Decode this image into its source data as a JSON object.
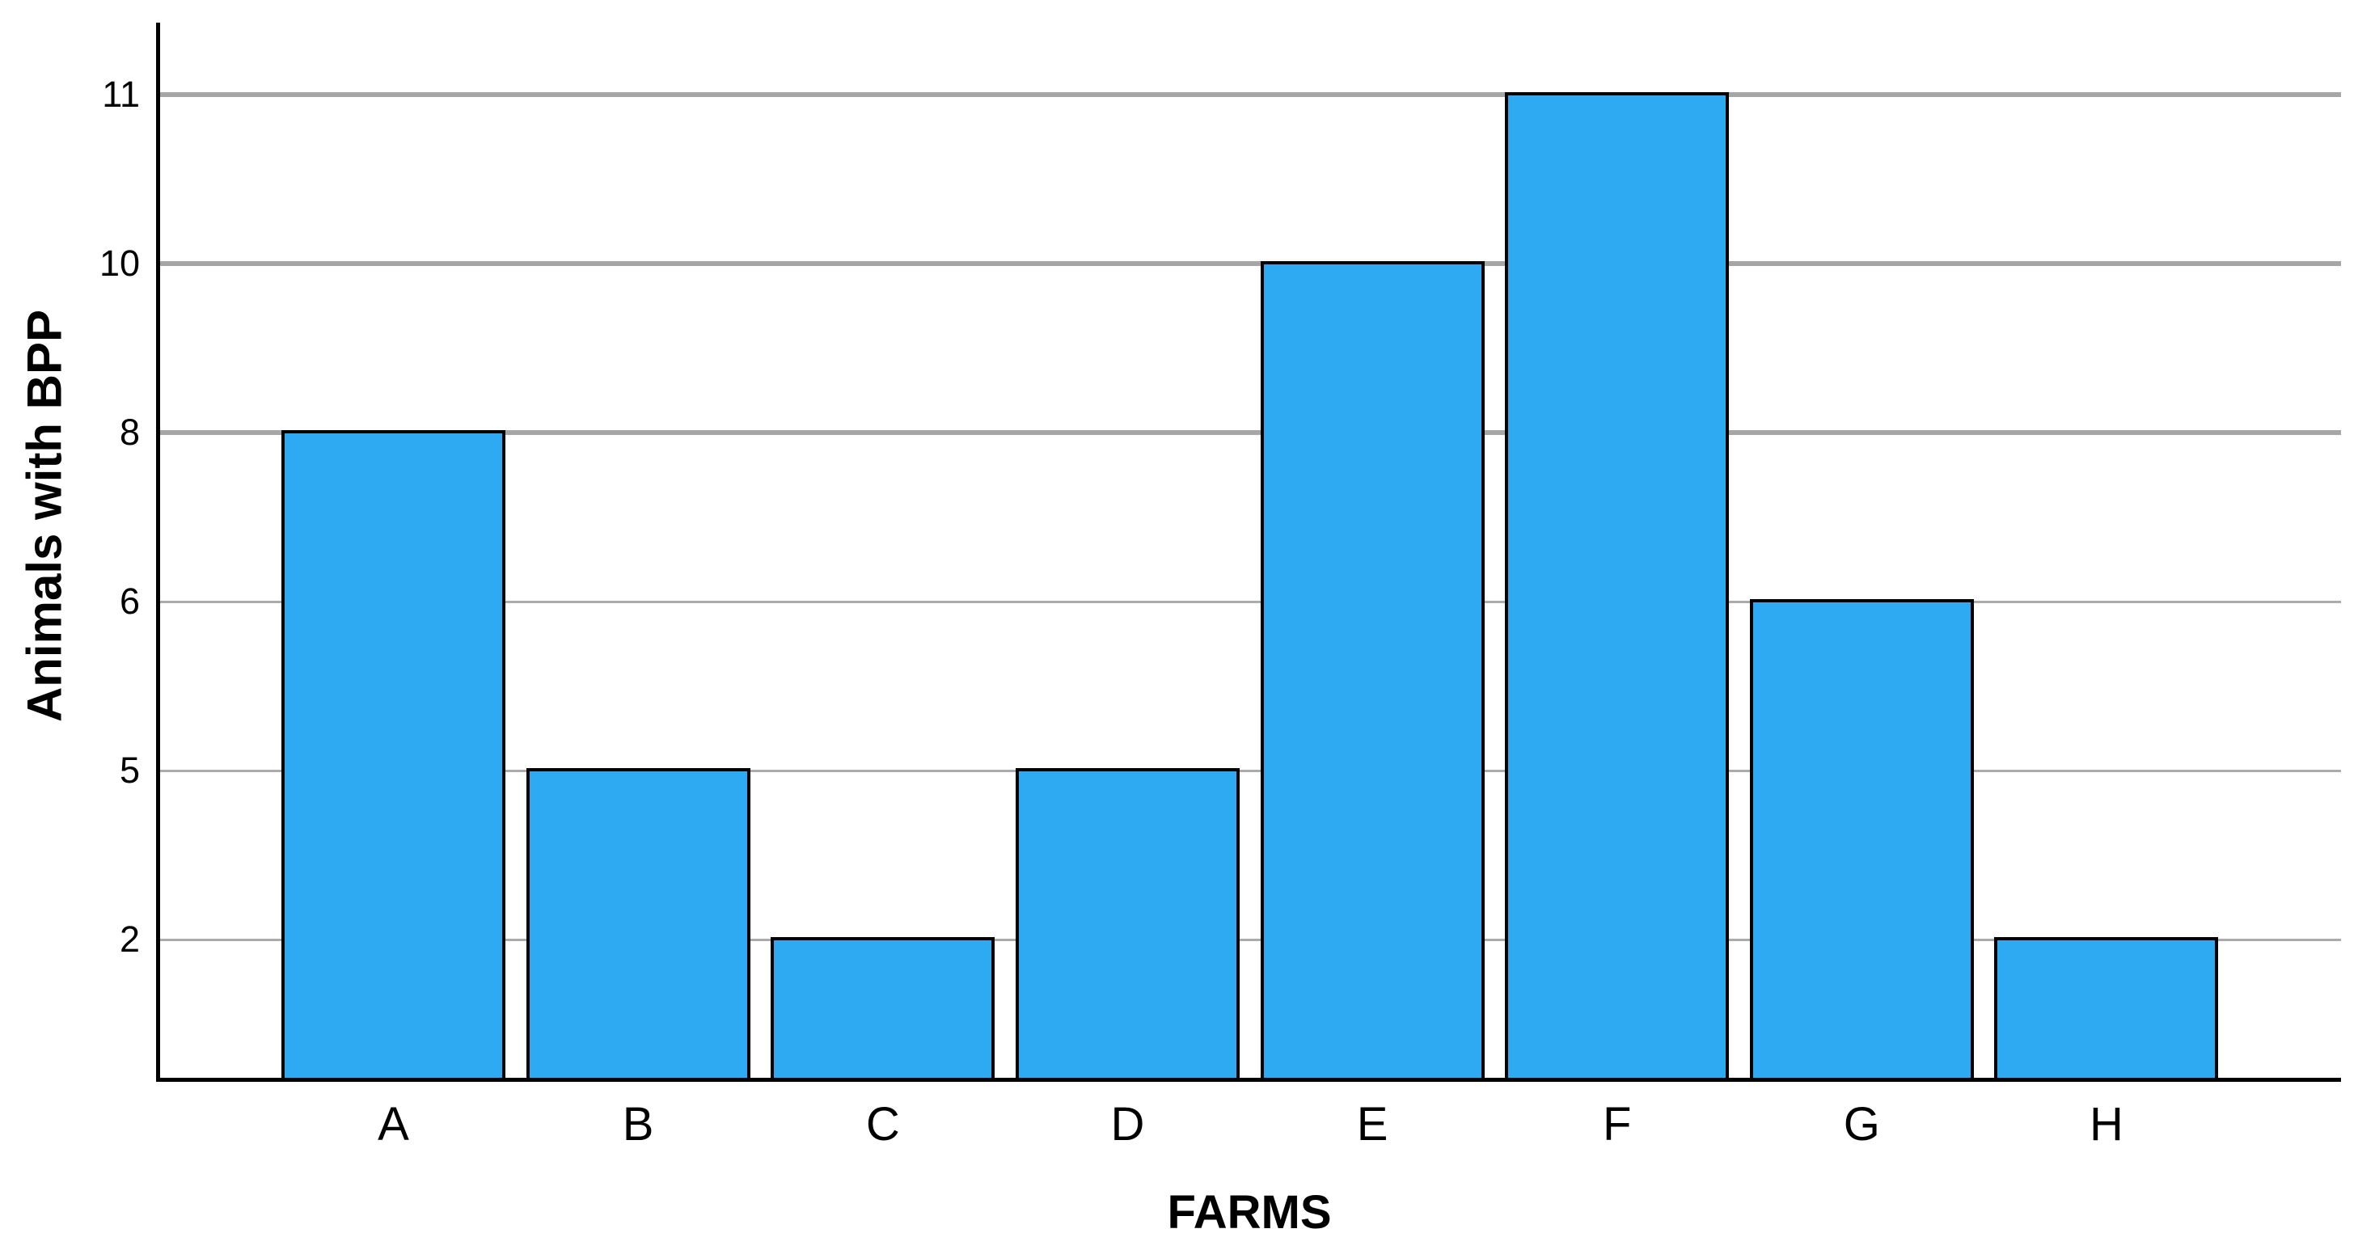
{
  "chart_data": {
    "type": "bar",
    "title": "",
    "xlabel": "FARMS",
    "ylabel": "Animals with BPP",
    "categories": [
      "A",
      "B",
      "C",
      "D",
      "E",
      "F",
      "G",
      "H"
    ],
    "values": [
      8,
      5,
      2,
      5,
      10,
      11,
      6,
      2
    ],
    "ytick_labels_top_to_bottom": [
      "11",
      "10",
      "8",
      "6",
      "5",
      "2"
    ],
    "y_scale": "ordinal-equal-spacing-of-distinct-values",
    "grid": true,
    "legend": "none",
    "gridline_values_thick": [
      8,
      10,
      11
    ],
    "gridline_values_thin": [
      2,
      5,
      6
    ],
    "colors": {
      "bar_fill": "#2EAAF2",
      "bar_border": "#000000",
      "gridline_thick": "#A6A6A6",
      "gridline_thin": "#ABABAB",
      "axis": "#000000",
      "text": "#000000",
      "background": "#FFFFFF"
    }
  }
}
